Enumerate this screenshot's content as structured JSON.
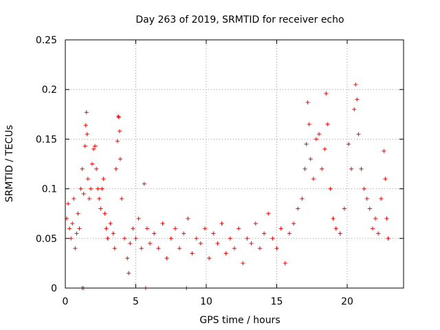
{
  "chart_data": {
    "type": "scatter",
    "title": "Day 263 of 2019, SRMTID for receiver echo",
    "xlabel": "GPS time / hours",
    "ylabel": "SRMTID / TECUs",
    "xlim": [
      0,
      24
    ],
    "ylim": [
      0,
      0.25
    ],
    "x_ticks": [
      0,
      5,
      10,
      15,
      20
    ],
    "x_tick_labels": [
      "0",
      "5",
      "10",
      "15",
      "20"
    ],
    "y_ticks": [
      0,
      0.05,
      0.1,
      0.15,
      0.2,
      0.25
    ],
    "y_tick_labels": [
      "0",
      "0.05",
      "0.1",
      "0.15",
      "0.2",
      "0.25"
    ],
    "grid": true,
    "marker": "+",
    "color": "#ff0000",
    "data_x_range": [
      0,
      22.9
    ],
    "series": [
      {
        "name": "SRMTID",
        "points": [
          [
            0.1,
            0.07
          ],
          [
            0.2,
            0.085
          ],
          [
            0.3,
            0.06
          ],
          [
            0.4,
            0.05
          ],
          [
            0.5,
            0.065
          ],
          [
            0.6,
            0.09
          ],
          [
            0.7,
            0.04
          ],
          [
            0.8,
            0.055
          ],
          [
            0.9,
            0.075
          ],
          [
            1.0,
            0.06
          ],
          [
            1.1,
            0.1
          ],
          [
            1.2,
            0.12
          ],
          [
            1.3,
            0.095
          ],
          [
            1.4,
            0.143
          ],
          [
            1.45,
            0.164
          ],
          [
            1.5,
            0.177
          ],
          [
            1.55,
            0.155
          ],
          [
            1.6,
            0.11
          ],
          [
            1.7,
            0.09
          ],
          [
            1.8,
            0.1
          ],
          [
            1.9,
            0.125
          ],
          [
            2.0,
            0.14
          ],
          [
            2.1,
            0.143
          ],
          [
            2.2,
            0.12
          ],
          [
            2.3,
            0.1
          ],
          [
            2.4,
            0.09
          ],
          [
            2.5,
            0.08
          ],
          [
            2.6,
            0.1
          ],
          [
            2.7,
            0.11
          ],
          [
            2.8,
            0.075
          ],
          [
            2.9,
            0.06
          ],
          [
            3.0,
            0.05
          ],
          [
            3.2,
            0.065
          ],
          [
            3.4,
            0.055
          ],
          [
            3.5,
            0.04
          ],
          [
            3.6,
            0.12
          ],
          [
            3.7,
            0.148
          ],
          [
            3.75,
            0.173
          ],
          [
            3.8,
            0.172
          ],
          [
            3.85,
            0.158
          ],
          [
            3.9,
            0.13
          ],
          [
            4.0,
            0.09
          ],
          [
            4.2,
            0.05
          ],
          [
            4.4,
            0.03
          ],
          [
            4.5,
            0.015
          ],
          [
            4.6,
            0.045
          ],
          [
            4.8,
            0.06
          ],
          [
            5.0,
            0.05
          ],
          [
            5.2,
            0.07
          ],
          [
            5.4,
            0.04
          ],
          [
            5.6,
            0.105
          ],
          [
            5.8,
            0.06
          ],
          [
            6.0,
            0.045
          ],
          [
            6.3,
            0.055
          ],
          [
            6.6,
            0.04
          ],
          [
            6.9,
            0.065
          ],
          [
            7.2,
            0.03
          ],
          [
            7.5,
            0.05
          ],
          [
            7.8,
            0.06
          ],
          [
            8.1,
            0.04
          ],
          [
            8.4,
            0.055
          ],
          [
            8.7,
            0.07
          ],
          [
            9.0,
            0.035
          ],
          [
            9.3,
            0.05
          ],
          [
            9.6,
            0.045
          ],
          [
            9.9,
            0.06
          ],
          [
            10.2,
            0.03
          ],
          [
            10.5,
            0.055
          ],
          [
            10.8,
            0.045
          ],
          [
            11.1,
            0.065
          ],
          [
            11.4,
            0.035
          ],
          [
            11.7,
            0.05
          ],
          [
            12.0,
            0.04
          ],
          [
            12.3,
            0.06
          ],
          [
            12.6,
            0.025
          ],
          [
            12.9,
            0.05
          ],
          [
            13.2,
            0.045
          ],
          [
            13.5,
            0.065
          ],
          [
            13.8,
            0.04
          ],
          [
            14.1,
            0.055
          ],
          [
            14.4,
            0.075
          ],
          [
            14.7,
            0.05
          ],
          [
            15.0,
            0.04
          ],
          [
            15.3,
            0.06
          ],
          [
            15.6,
            0.025
          ],
          [
            15.9,
            0.055
          ],
          [
            16.2,
            0.065
          ],
          [
            16.5,
            0.08
          ],
          [
            16.8,
            0.09
          ],
          [
            17.0,
            0.12
          ],
          [
            17.1,
            0.145
          ],
          [
            17.2,
            0.187
          ],
          [
            17.3,
            0.165
          ],
          [
            17.4,
            0.13
          ],
          [
            17.6,
            0.11
          ],
          [
            17.8,
            0.15
          ],
          [
            18.0,
            0.155
          ],
          [
            18.2,
            0.12
          ],
          [
            18.4,
            0.14
          ],
          [
            18.5,
            0.196
          ],
          [
            18.6,
            0.165
          ],
          [
            18.8,
            0.1
          ],
          [
            19.0,
            0.07
          ],
          [
            19.2,
            0.06
          ],
          [
            19.5,
            0.055
          ],
          [
            19.8,
            0.08
          ],
          [
            20.1,
            0.145
          ],
          [
            20.3,
            0.12
          ],
          [
            20.5,
            0.18
          ],
          [
            20.6,
            0.205
          ],
          [
            20.7,
            0.19
          ],
          [
            20.8,
            0.155
          ],
          [
            21.0,
            0.12
          ],
          [
            21.2,
            0.1
          ],
          [
            21.4,
            0.09
          ],
          [
            21.6,
            0.08
          ],
          [
            21.8,
            0.06
          ],
          [
            22.0,
            0.07
          ],
          [
            22.2,
            0.055
          ],
          [
            22.4,
            0.09
          ],
          [
            22.6,
            0.138
          ],
          [
            22.7,
            0.11
          ],
          [
            22.8,
            0.07
          ],
          [
            22.9,
            0.05
          ],
          [
            1.2,
            0
          ],
          [
            1.3,
            0
          ],
          [
            5.7,
            0
          ],
          [
            8.6,
            0
          ]
        ]
      }
    ]
  }
}
